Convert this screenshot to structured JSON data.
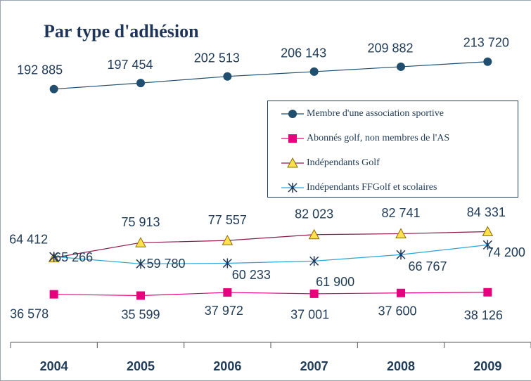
{
  "chart_data": {
    "type": "line",
    "title": "Par type d'adhésion",
    "categories": [
      "2004",
      "2005",
      "2006",
      "2007",
      "2008",
      "2009"
    ],
    "ylim": [
      0,
      250000
    ],
    "series": [
      {
        "name": "Membre d'une association sportive",
        "color": "#1f4e6e",
        "marker": "circle",
        "values": [
          192885,
          197454,
          202513,
          206143,
          209882,
          213720
        ],
        "value_labels": [
          "192 885",
          "197 454",
          "202 513",
          "206 143",
          "209 882",
          "213 720"
        ]
      },
      {
        "name": "Abonnés golf, non membres de l'AS",
        "color": "#e6007e",
        "marker": "square",
        "values": [
          36578,
          35599,
          37972,
          37001,
          37600,
          38126
        ],
        "value_labels": [
          "36 578",
          "35 599",
          "37 972",
          "37 001",
          "37 600",
          "38 126"
        ]
      },
      {
        "name": "Indépendants Golf",
        "color": "#8b1a4a",
        "marker": "triangle",
        "values": [
          64412,
          75913,
          77557,
          82023,
          82741,
          84331
        ],
        "value_labels": [
          "64 412",
          "75 913",
          "77 557",
          "82 023",
          "82 741",
          "84 331"
        ]
      },
      {
        "name": "Indépendants FFGolf et scolaires",
        "color": "#2aa6d8",
        "marker": "star",
        "values": [
          65266,
          59780,
          60233,
          61900,
          66767,
          74200
        ],
        "value_labels": [
          "65 266",
          "59 780",
          "60 233",
          "61 900",
          "66 767",
          "74 200"
        ]
      }
    ]
  }
}
